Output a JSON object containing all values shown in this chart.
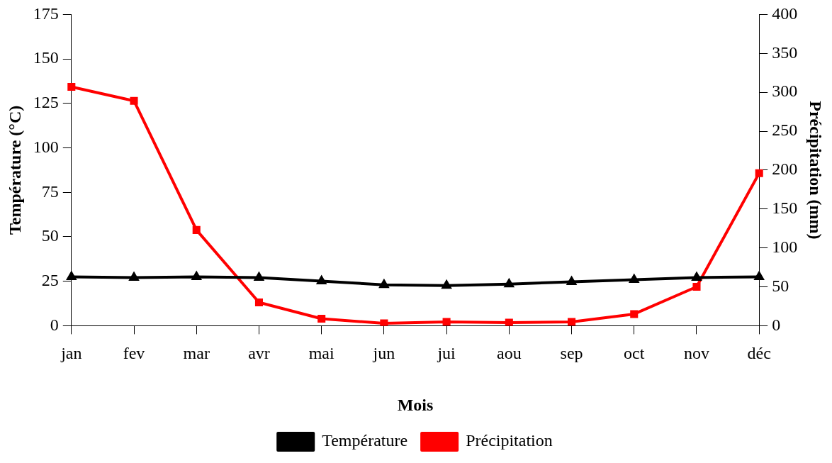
{
  "chart_data": {
    "type": "line",
    "xlabel": "Mois",
    "ylabel": "Température (°C)",
    "y2label": "Précipitation (mm)",
    "categories": [
      "jan",
      "fev",
      "mar",
      "avr",
      "mai",
      "jun",
      "jui",
      "aou",
      "sep",
      "oct",
      "nov",
      "déc"
    ],
    "series": [
      {
        "name": "Température",
        "color": "#000000",
        "marker": "triangle",
        "values": [
          27.5,
          27.1,
          27.5,
          27.1,
          25.1,
          23.0,
          22.6,
          23.4,
          24.7,
          25.9,
          27.1,
          27.5
        ]
      },
      {
        "name": "Précipitation",
        "color": "#ff0000",
        "marker": "square",
        "axis": "y2",
        "values": [
          307,
          289,
          123,
          30,
          9,
          3,
          5,
          4,
          5,
          15,
          50,
          196
        ]
      }
    ],
    "ylim": [
      0,
      175
    ],
    "yticks": [
      0,
      25,
      50,
      75,
      100,
      125,
      150,
      175
    ],
    "y2lim": [
      0,
      400
    ],
    "y2ticks": [
      0,
      50,
      100,
      150,
      200,
      250,
      300,
      350,
      400
    ],
    "grid": false,
    "legend": "bottom",
    "line_style": "solid"
  }
}
